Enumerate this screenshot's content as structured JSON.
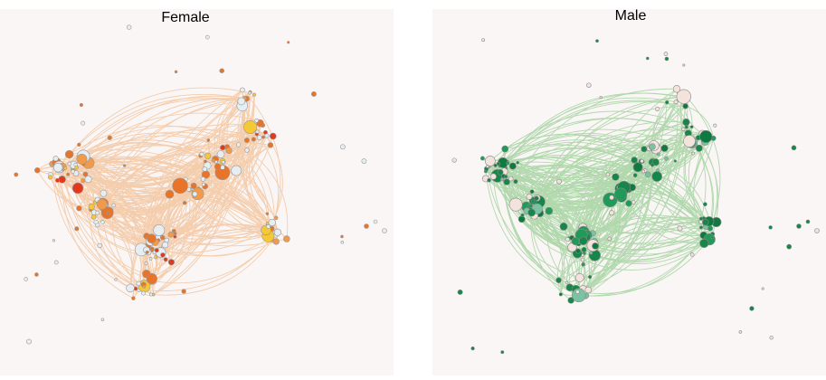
{
  "panels": [
    {
      "title": "Female"
    },
    {
      "title": "Male"
    }
  ]
}
